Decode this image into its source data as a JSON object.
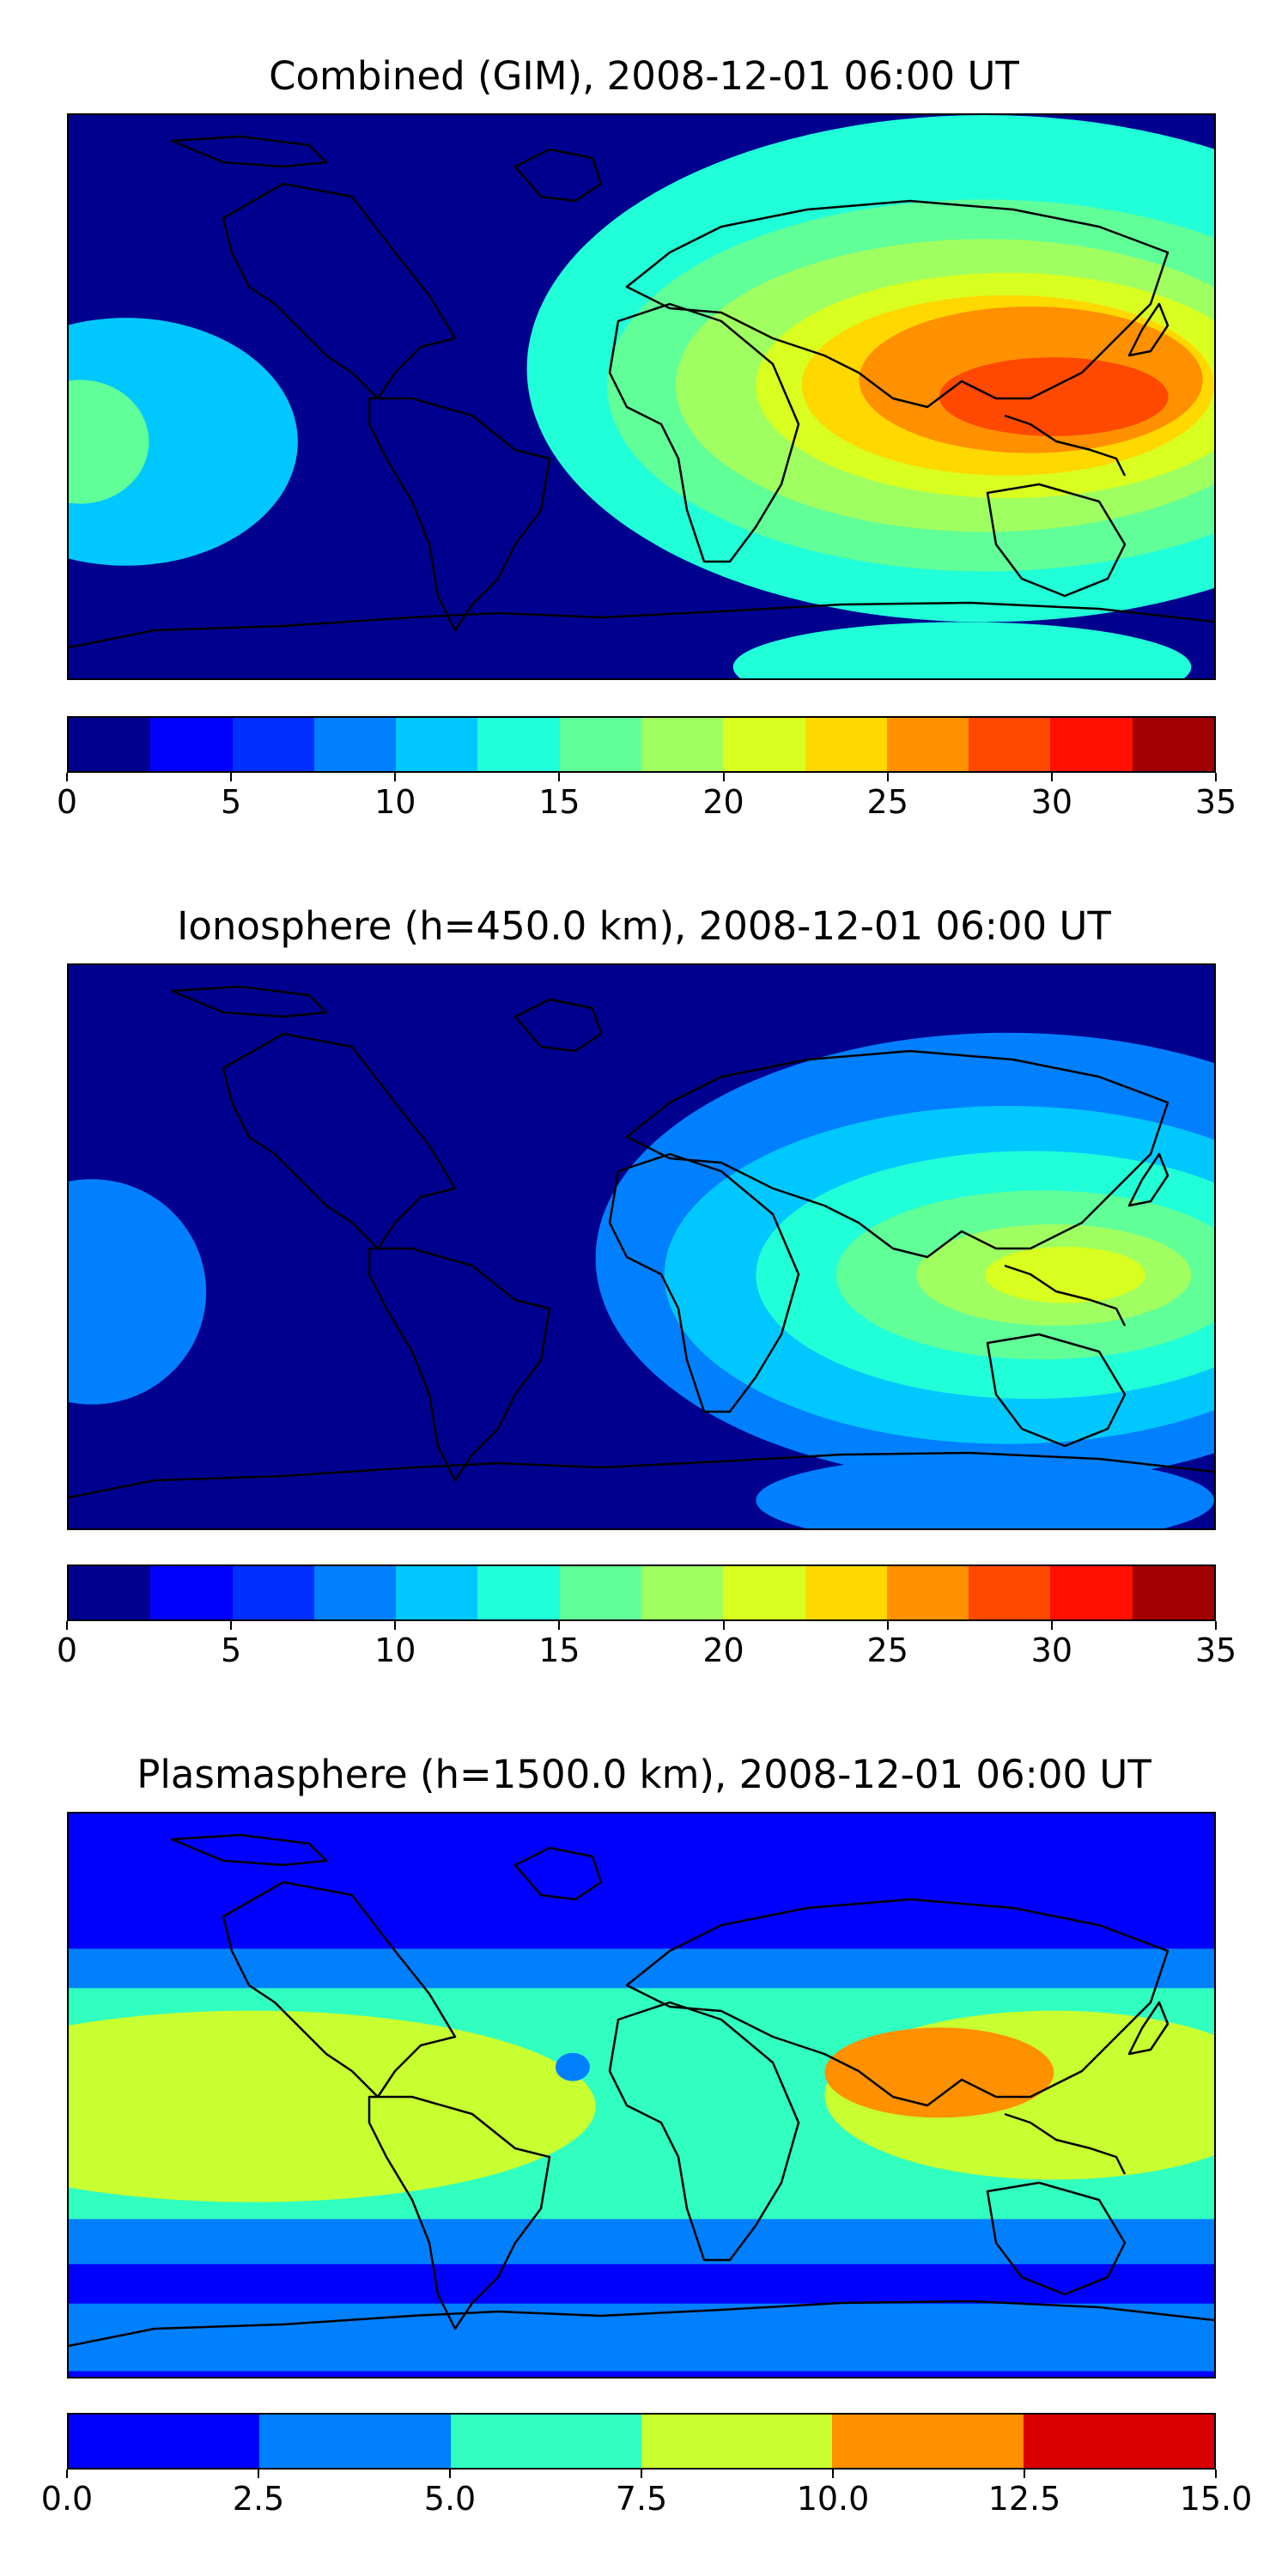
{
  "chart_data": [
    {
      "type": "heatmap",
      "title": "Combined (GIM), 2008-12-01 06:00 UT",
      "colorbar": {
        "ticks": [
          "0",
          "5",
          "10",
          "15",
          "20",
          "25",
          "30",
          "35"
        ],
        "range": [
          0,
          35
        ],
        "step": 2.5,
        "colors": [
          "#00008f",
          "#0000ff",
          "#0030ff",
          "#0080ff",
          "#00c8ff",
          "#20ffd8",
          "#60ff98",
          "#a0ff60",
          "#d8ff20",
          "#ffd800",
          "#ff9000",
          "#ff4800",
          "#ff1000",
          "#a00000"
        ]
      },
      "blobs": [
        {
          "cx": 0.8,
          "cy": 0.45,
          "rx": 0.4,
          "ry": 0.45,
          "level": 5
        },
        {
          "cx": 0.8,
          "cy": 0.48,
          "rx": 0.33,
          "ry": 0.33,
          "level": 6
        },
        {
          "cx": 0.8,
          "cy": 0.48,
          "rx": 0.27,
          "ry": 0.26,
          "level": 7
        },
        {
          "cx": 0.82,
          "cy": 0.48,
          "rx": 0.22,
          "ry": 0.2,
          "level": 8
        },
        {
          "cx": 0.82,
          "cy": 0.48,
          "rx": 0.18,
          "ry": 0.16,
          "level": 9
        },
        {
          "cx": 0.84,
          "cy": 0.47,
          "rx": 0.15,
          "ry": 0.13,
          "level": 10
        },
        {
          "cx": 0.86,
          "cy": 0.5,
          "rx": 0.1,
          "ry": 0.07,
          "level": 11
        },
        {
          "cx": 0.05,
          "cy": 0.58,
          "rx": 0.15,
          "ry": 0.22,
          "level": 4
        },
        {
          "cx": 0.01,
          "cy": 0.58,
          "rx": 0.06,
          "ry": 0.11,
          "level": 6
        },
        {
          "cx": 0.78,
          "cy": 0.98,
          "rx": 0.2,
          "ry": 0.08,
          "level": 5
        }
      ]
    },
    {
      "type": "heatmap",
      "title": "Ionosphere  (h=450.0 km), 2008-12-01 06:00 UT",
      "colorbar": {
        "ticks": [
          "0",
          "5",
          "10",
          "15",
          "20",
          "25",
          "30",
          "35"
        ],
        "range": [
          0,
          35
        ],
        "step": 2.5,
        "colors": [
          "#00008f",
          "#0000ff",
          "#0030ff",
          "#0080ff",
          "#00c8ff",
          "#20ffd8",
          "#60ff98",
          "#a0ff60",
          "#d8ff20",
          "#ffd800",
          "#ff9000",
          "#ff4800",
          "#ff1000",
          "#a00000"
        ]
      },
      "blobs": [
        {
          "cx": 0.82,
          "cy": 0.52,
          "rx": 0.36,
          "ry": 0.4,
          "level": 3
        },
        {
          "cx": 0.82,
          "cy": 0.55,
          "rx": 0.3,
          "ry": 0.3,
          "level": 4
        },
        {
          "cx": 0.84,
          "cy": 0.55,
          "rx": 0.24,
          "ry": 0.22,
          "level": 5
        },
        {
          "cx": 0.85,
          "cy": 0.55,
          "rx": 0.18,
          "ry": 0.15,
          "level": 6
        },
        {
          "cx": 0.86,
          "cy": 0.55,
          "rx": 0.12,
          "ry": 0.09,
          "level": 7
        },
        {
          "cx": 0.87,
          "cy": 0.55,
          "rx": 0.07,
          "ry": 0.05,
          "level": 8
        },
        {
          "cx": 0.02,
          "cy": 0.58,
          "rx": 0.1,
          "ry": 0.2,
          "level": 3
        },
        {
          "cx": 0.8,
          "cy": 0.95,
          "rx": 0.2,
          "ry": 0.08,
          "level": 3
        }
      ]
    },
    {
      "type": "heatmap",
      "title": "Plasmasphere (h=1500.0 km), 2008-12-01 06:00 UT",
      "colorbar": {
        "ticks": [
          "0.0",
          "2.5",
          "5.0",
          "7.5",
          "10.0",
          "12.5",
          "15.0"
        ],
        "range": [
          0,
          15
        ],
        "step": 2.5,
        "colors": [
          "#0000ff",
          "#0080ff",
          "#30ffc0",
          "#c8ff30",
          "#ff9000",
          "#d80000"
        ]
      },
      "bands": [
        {
          "y0": 0.24,
          "y1": 0.8,
          "level": 1
        },
        {
          "y0": 0.31,
          "y1": 0.72,
          "level": 2
        },
        {
          "y0": 0.87,
          "y1": 0.99,
          "level": 1
        }
      ],
      "blobs": [
        {
          "cx": 0.16,
          "cy": 0.52,
          "rx": 0.3,
          "ry": 0.17,
          "level": 3
        },
        {
          "cx": 0.86,
          "cy": 0.5,
          "rx": 0.2,
          "ry": 0.15,
          "level": 3
        },
        {
          "cx": 0.76,
          "cy": 0.46,
          "rx": 0.1,
          "ry": 0.08,
          "level": 4
        },
        {
          "cx": 0.44,
          "cy": 0.45,
          "rx": 0.015,
          "ry": 0.025,
          "level": 1
        }
      ]
    }
  ]
}
